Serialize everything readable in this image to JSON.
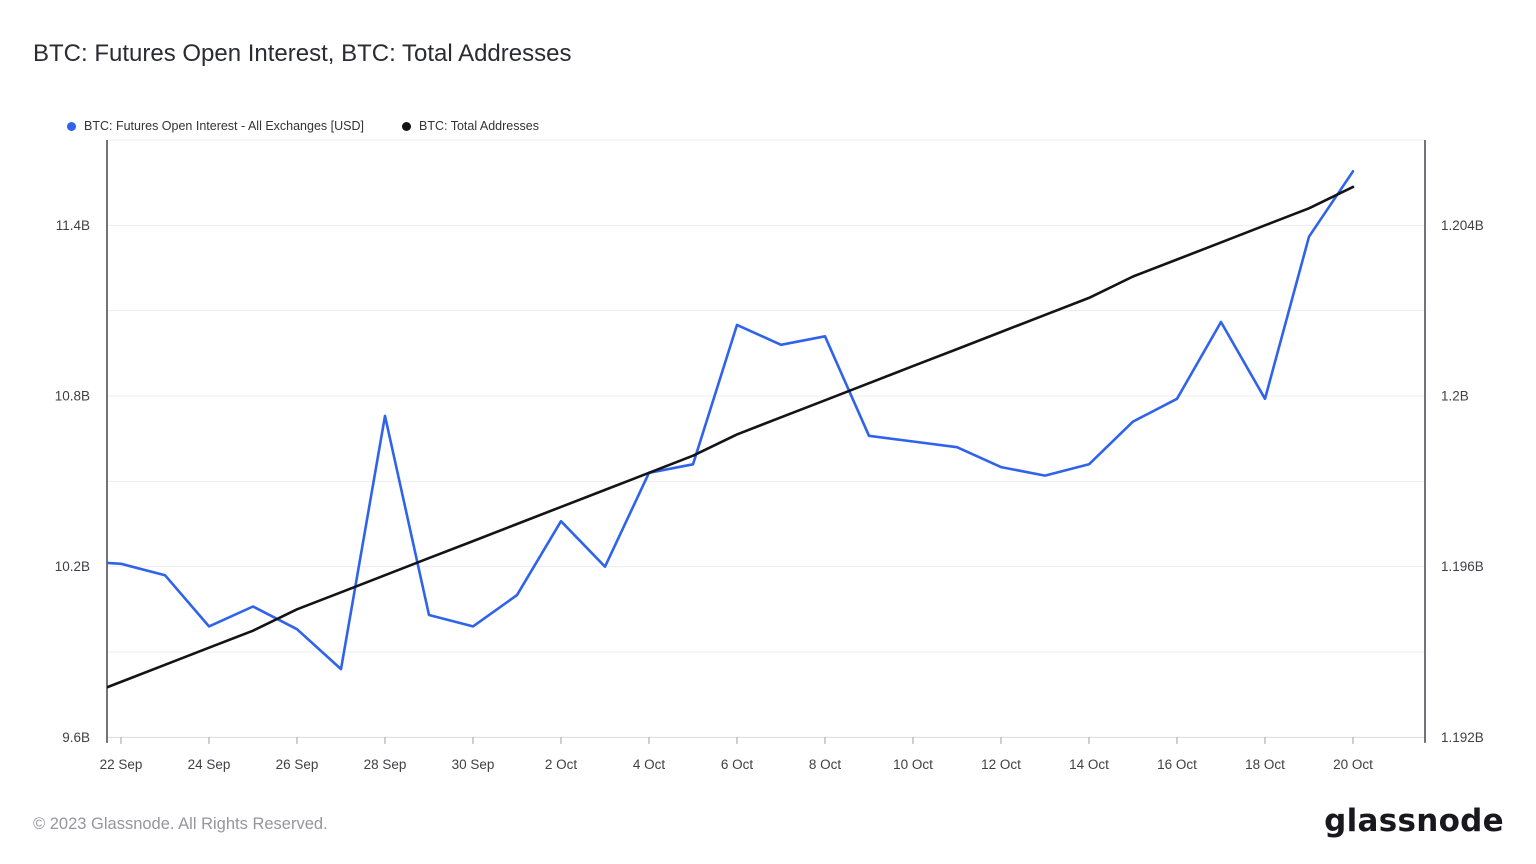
{
  "title": "BTC: Futures Open Interest, BTC: Total Addresses",
  "legend": [
    {
      "label": "BTC: Futures Open Interest - All Exchanges [USD]",
      "color": "#2f63eb"
    },
    {
      "label": "BTC: Total Addresses",
      "color": "#141418"
    }
  ],
  "footer": {
    "copyright": "© 2023 Glassnode. All Rights Reserved.",
    "logo_text": "glassnode"
  },
  "palette": {
    "grid": "#ededef",
    "bottom_line": "#d9d9de",
    "axis": "#45454d",
    "tick": "#9c9ca3",
    "axis_text": "#3f3f46"
  },
  "chart_data": {
    "type": "line",
    "note": "Daily data; first point (21 Sep) lies at the clipped left edge of the plot. Blue series on left axis (USD billions), black series on right axis (addresses, billions).",
    "x": [
      "21 Sep",
      "22 Sep",
      "23 Sep",
      "24 Sep",
      "25 Sep",
      "26 Sep",
      "27 Sep",
      "28 Sep",
      "29 Sep",
      "30 Sep",
      "1 Oct",
      "2 Oct",
      "3 Oct",
      "4 Oct",
      "5 Oct",
      "6 Oct",
      "7 Oct",
      "8 Oct",
      "9 Oct",
      "10 Oct",
      "11 Oct",
      "12 Oct",
      "13 Oct",
      "14 Oct",
      "15 Oct",
      "16 Oct",
      "17 Oct",
      "18 Oct",
      "19 Oct",
      "20 Oct"
    ],
    "x_tick_labels": [
      "22 Sep",
      "24 Sep",
      "26 Sep",
      "28 Sep",
      "30 Sep",
      "2 Oct",
      "4 Oct",
      "6 Oct",
      "8 Oct",
      "10 Oct",
      "12 Oct",
      "14 Oct",
      "16 Oct",
      "18 Oct",
      "20 Oct"
    ],
    "series": [
      {
        "name": "BTC: Futures Open Interest - All Exchanges [USD]",
        "axis": "left",
        "color": "#2f63eb",
        "values": [
          10.22,
          10.21,
          10.17,
          9.99,
          10.06,
          9.98,
          9.84,
          10.73,
          10.03,
          9.99,
          10.1,
          10.36,
          10.2,
          10.53,
          10.56,
          11.05,
          10.98,
          11.01,
          10.66,
          10.64,
          10.62,
          10.55,
          10.52,
          10.56,
          10.71,
          10.79,
          11.06,
          10.79,
          11.36,
          11.59
        ]
      },
      {
        "name": "BTC: Total Addresses",
        "axis": "right",
        "color": "#141418",
        "values": [
          1.1929,
          1.1933,
          1.1937,
          1.1941,
          1.1945,
          1.195,
          1.1954,
          1.1958,
          1.1962,
          1.1966,
          1.197,
          1.1974,
          1.1978,
          1.1982,
          1.1986,
          1.1991,
          1.1995,
          1.1999,
          1.2003,
          1.2007,
          1.2011,
          1.2015,
          1.2019,
          1.2023,
          1.2028,
          1.2032,
          1.2036,
          1.204,
          1.2044,
          1.2049
        ]
      }
    ],
    "left_axis": {
      "min": 9.6,
      "max": 11.7,
      "ticks": [
        {
          "value": 11.4,
          "label": "11.4B"
        },
        {
          "value": 10.8,
          "label": "10.8B"
        },
        {
          "value": 10.2,
          "label": "10.2B"
        },
        {
          "value": 9.6,
          "label": "9.6B"
        }
      ],
      "gridline_values": [
        11.7,
        11.4,
        11.1,
        10.8,
        10.5,
        10.2,
        9.9
      ]
    },
    "right_axis": {
      "min": 1.192,
      "max": 1.206,
      "ticks": [
        {
          "value": 1.204,
          "label": "1.204B"
        },
        {
          "value": 1.2,
          "label": "1.2B"
        },
        {
          "value": 1.196,
          "label": "1.196B"
        },
        {
          "value": 1.192,
          "label": "1.192B"
        }
      ]
    },
    "grid": true,
    "legend_position": "top-left"
  }
}
